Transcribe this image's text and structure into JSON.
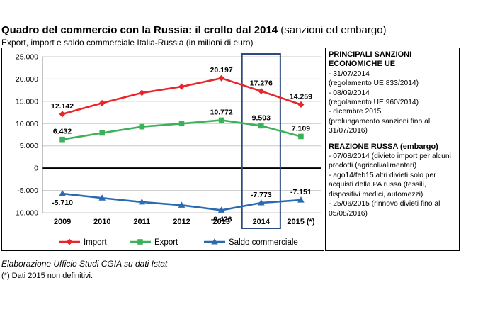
{
  "title": {
    "bold": "Quadro del commercio con la Russia: il crollo dal 2014",
    "normal": "(sanzioni ed embargo)"
  },
  "subtitle": "Export, import e saldo commerciale Italia-Russia (in milioni di euro)",
  "chart_data": {
    "type": "line",
    "categories": [
      "2009",
      "2010",
      "2011",
      "2012",
      "2013",
      "2014",
      "2015 (*)"
    ],
    "y_ticks": [
      "25.000",
      "20.000",
      "15.000",
      "10.000",
      "5.000",
      "0",
      "-5.000",
      "-10.000"
    ],
    "ylim": [
      -10000,
      25000
    ],
    "grid": true,
    "legend_position": "bottom",
    "highlighted_category": "2014",
    "series": [
      {
        "name": "Import",
        "color": "#e8262a",
        "marker": "diamond",
        "values": [
          12142,
          14600,
          16900,
          18300,
          20197,
          17276,
          14259
        ],
        "labels": [
          "12.142",
          "",
          "",
          "",
          "20.197",
          "17.276",
          "14.259"
        ]
      },
      {
        "name": "Export",
        "color": "#3cb15a",
        "marker": "square",
        "values": [
          6432,
          7900,
          9300,
          10000,
          10772,
          9503,
          7109
        ],
        "labels": [
          "6.432",
          "",
          "",
          "",
          "10.772",
          "9.503",
          "7.109"
        ]
      },
      {
        "name": "Saldo commerciale",
        "color": "#2a6ab0",
        "marker": "triangle",
        "values": [
          -5710,
          -6700,
          -7600,
          -8300,
          -9426,
          -7773,
          -7151
        ],
        "labels": [
          "-5.710",
          "",
          "",
          "",
          "-9.426",
          "-7.773",
          "-7.151"
        ]
      }
    ]
  },
  "sidebar": {
    "sanzioni_title": "PRINCIPALI SANZIONI ECONOMICHE UE",
    "sanzioni": [
      "- 31/07/2014",
      "(regolamento UE 833/2014)",
      "- 08/09/2014",
      "(regolamento UE 960/2014)",
      "- dicembre 2015",
      "(prolungamento sanzioni fino al 31/07/2016)"
    ],
    "reazione_title": "REAZIONE RUSSA (embargo)",
    "reazione": [
      "- 07/08/2014 (divieto import per alcuni prodotti (agricoli/alimentari)",
      "- ago14/feb15 altri divieti solo per acquisti della PA russa (tessili, dispositivi medici, automezzi)",
      "- 25/06/2015 (rinnovo divieti fino al 05/08/2016)"
    ]
  },
  "footer": {
    "source": "Elaborazione Ufficio Studi CGIA su dati Istat",
    "note": "(*) Dati 2015 non definitivi."
  }
}
